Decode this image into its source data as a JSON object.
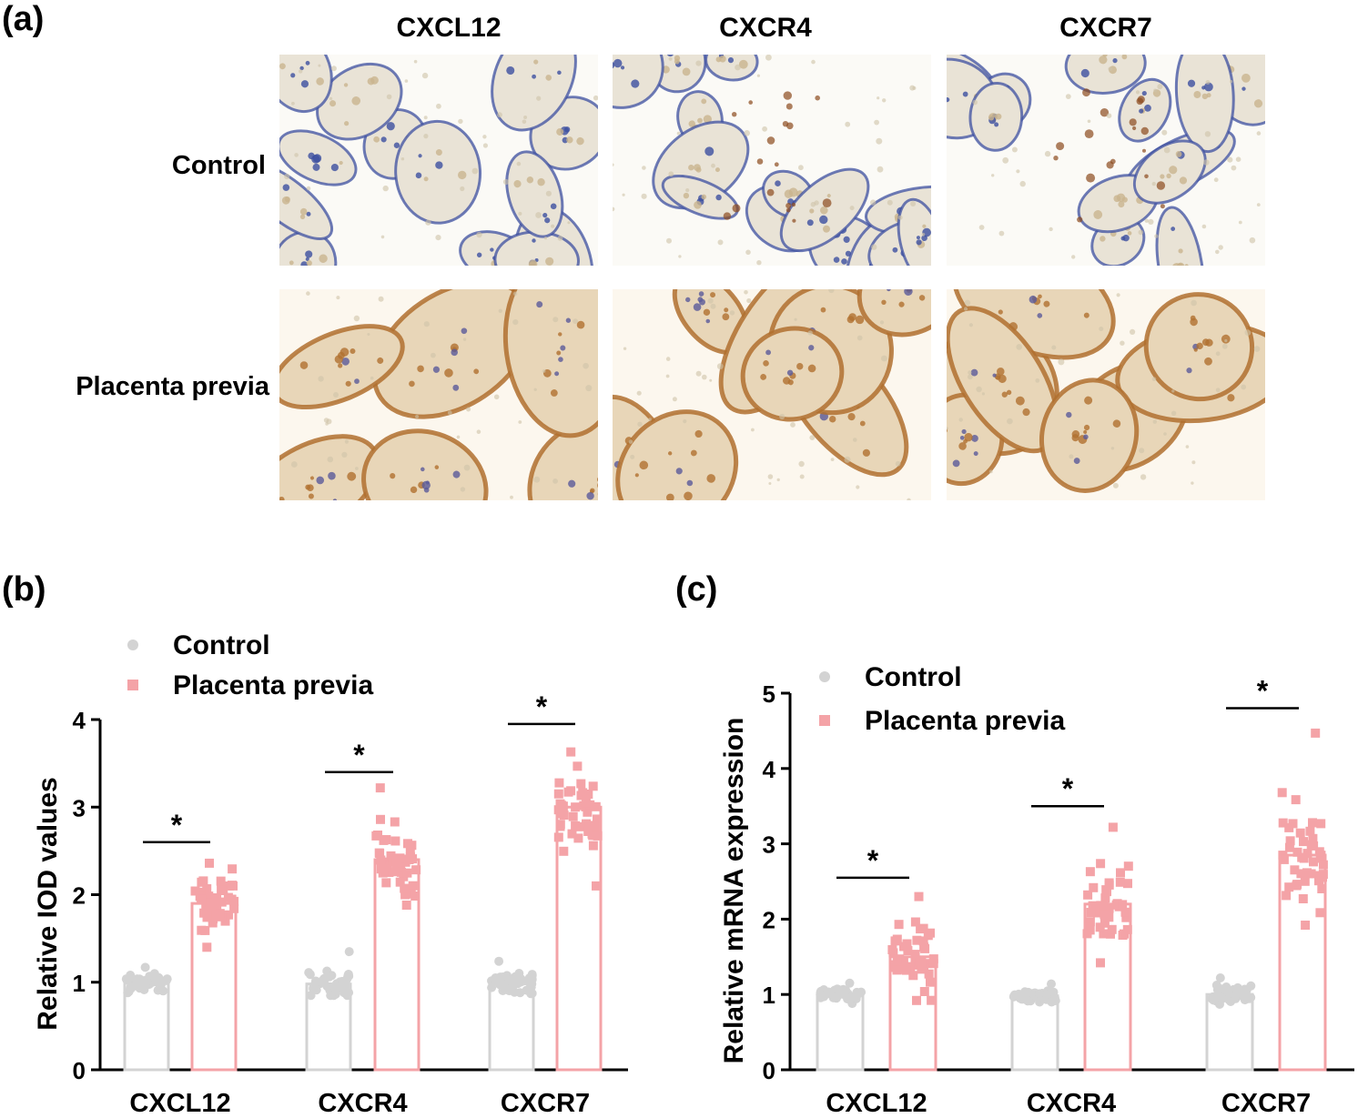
{
  "panel_a": {
    "label": "(a)",
    "columns": [
      "CXCL12",
      "CXCR4",
      "CXCR7"
    ],
    "rows": [
      "Control",
      "Placenta previa"
    ]
  },
  "panel_b": {
    "label": "(b)"
  },
  "panel_c": {
    "label": "(c)"
  },
  "colors": {
    "control": "#d3d3d3",
    "placenta_previa": "#f4a3a7",
    "control_stain_blue": "#3c4fa0",
    "previa_stain_brown": "#b0702f"
  },
  "chart_data": [
    {
      "type": "bar",
      "panel": "(b)",
      "categories": [
        "CXCL12",
        "CXCR4",
        "CXCR7"
      ],
      "ylabel": "Relative IOD values",
      "ylim": [
        0,
        4
      ],
      "yticks": [
        0,
        1,
        2,
        3,
        4
      ],
      "legend": [
        "Control",
        "Placenta previa"
      ],
      "legend_position": "top-left",
      "series": [
        {
          "name": "Control",
          "values": [
            1.0,
            0.98,
            1.0
          ],
          "spread": [
            [
              0.88,
              1.17
            ],
            [
              0.85,
              1.35
            ],
            [
              0.87,
              1.24
            ]
          ]
        },
        {
          "name": "Placenta previa",
          "values": [
            1.9,
            2.4,
            3.0
          ],
          "spread": [
            [
              1.4,
              2.36
            ],
            [
              1.88,
              3.22
            ],
            [
              2.1,
              3.63
            ]
          ]
        }
      ],
      "significance": [
        "*",
        "*",
        "*"
      ],
      "significance_y": [
        2.6,
        3.4,
        3.95
      ]
    },
    {
      "type": "bar",
      "panel": "(c)",
      "categories": [
        "CXCL12",
        "CXCR4",
        "CXCR7"
      ],
      "ylabel": "Relative mRNA expression",
      "ylim": [
        0,
        5
      ],
      "yticks": [
        0,
        1,
        2,
        3,
        4,
        5
      ],
      "legend": [
        "Control",
        "Placenta previa"
      ],
      "legend_position": "top-left",
      "series": [
        {
          "name": "Control",
          "values": [
            1.0,
            0.98,
            1.0
          ],
          "spread": [
            [
              0.88,
              1.15
            ],
            [
              0.9,
              1.14
            ],
            [
              0.87,
              1.22
            ]
          ]
        },
        {
          "name": "Placenta previa",
          "values": [
            1.5,
            2.2,
            2.85
          ],
          "spread": [
            [
              0.92,
              2.3
            ],
            [
              1.42,
              3.22
            ],
            [
              1.92,
              4.47
            ]
          ]
        }
      ],
      "significance": [
        "*",
        "*",
        "*"
      ],
      "significance_y": [
        2.55,
        3.5,
        4.8
      ]
    }
  ]
}
